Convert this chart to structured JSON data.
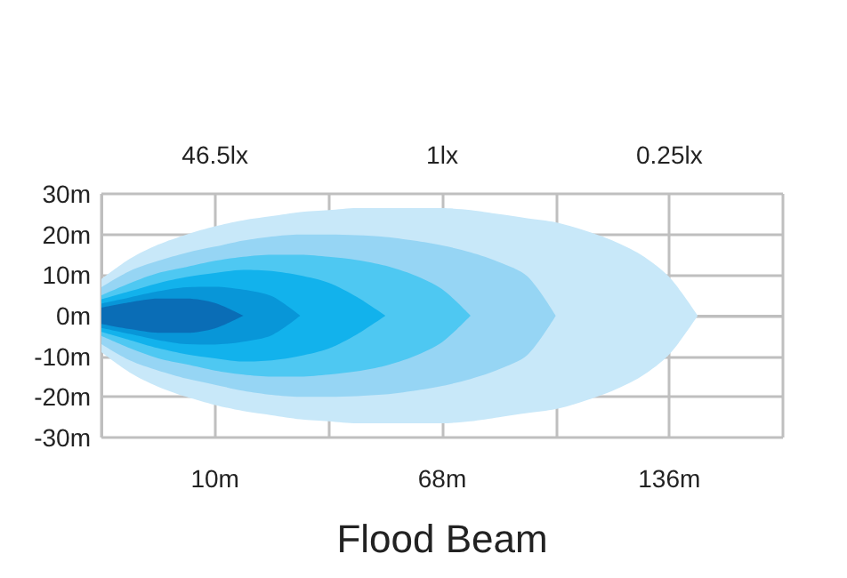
{
  "chart_data": {
    "type": "area",
    "xlabel": "Flood Beam",
    "categories": [
      null,
      null,
      null,
      null,
      "10m",
      null,
      null,
      null,
      null,
      null,
      null,
      null,
      "68m",
      null,
      null,
      null,
      null,
      null,
      null,
      null,
      "136m",
      null,
      null,
      null,
      null
    ],
    "series": [
      {
        "color": "#c8e8f9",
        "values": [
          9,
          14,
          17.5,
          20,
          22,
          23.5,
          24.5,
          25.5,
          26,
          26.5,
          26.5,
          26.5,
          26.5,
          26,
          25,
          24,
          23,
          21,
          18.5,
          15,
          9.5,
          0,
          null,
          null,
          null
        ]
      },
      {
        "color": "#c8e8f9",
        "values": [
          -9,
          -14,
          -17.5,
          -20,
          -22,
          -23.5,
          -24.5,
          -25.5,
          -26,
          -26.5,
          -26.5,
          -26.5,
          -26.5,
          -26,
          -25,
          -24,
          -23,
          -21,
          -18.5,
          -15,
          -9.5,
          0,
          null,
          null,
          null
        ]
      },
      {
        "color": "#96d5f4",
        "values": [
          7,
          11,
          13.5,
          15.5,
          17,
          18.5,
          19.5,
          20,
          20,
          19.8,
          19.4,
          18.5,
          17.3,
          15.6,
          13.2,
          9.7,
          0,
          null,
          null,
          null,
          null,
          null,
          null,
          null,
          null
        ]
      },
      {
        "color": "#96d5f4",
        "values": [
          -7,
          -11,
          -13.5,
          -15.5,
          -17,
          -18.5,
          -19.5,
          -20,
          -20,
          -19.8,
          -19.4,
          -18.5,
          -17.3,
          -15.6,
          -13.2,
          -9.7,
          0,
          null,
          null,
          null,
          null,
          null,
          null,
          null,
          null
        ]
      },
      {
        "color": "#4ec8f2",
        "values": [
          5,
          8,
          10.5,
          12,
          13.5,
          14.5,
          15,
          15,
          14.5,
          13.7,
          12.3,
          10,
          6.5,
          0,
          null,
          null,
          null,
          null,
          null,
          null,
          null,
          null,
          null,
          null,
          null
        ]
      },
      {
        "color": "#4ec8f2",
        "values": [
          -5,
          -8,
          -10.5,
          -12,
          -13.5,
          -14.5,
          -15,
          -15,
          -14.5,
          -13.7,
          -12.3,
          -10,
          -6.5,
          0,
          null,
          null,
          null,
          null,
          null,
          null,
          null,
          null,
          null,
          null,
          null
        ]
      },
      {
        "color": "#12b2ec",
        "values": [
          4,
          6,
          8,
          9.5,
          10.5,
          11.3,
          11,
          9.9,
          8.1,
          4.6,
          0,
          null,
          null,
          null,
          null,
          null,
          null,
          null,
          null,
          null,
          null,
          null,
          null,
          null,
          null
        ]
      },
      {
        "color": "#12b2ec",
        "values": [
          -4,
          -6,
          -8,
          -9.5,
          -10.5,
          -11.3,
          -11,
          -9.9,
          -8.1,
          -4.6,
          0,
          null,
          null,
          null,
          null,
          null,
          null,
          null,
          null,
          null,
          null,
          null,
          null,
          null,
          null
        ]
      },
      {
        "color": "#0896d8",
        "values": [
          3,
          4.5,
          6,
          7,
          7.1,
          6.4,
          4.8,
          0,
          null,
          null,
          null,
          null,
          null,
          null,
          null,
          null,
          null,
          null,
          null,
          null,
          null,
          null,
          null,
          null,
          null
        ]
      },
      {
        "color": "#0896d8",
        "values": [
          -3,
          -4.5,
          -6,
          -7,
          -7.1,
          -6.4,
          -4.8,
          0,
          null,
          null,
          null,
          null,
          null,
          null,
          null,
          null,
          null,
          null,
          null,
          null,
          null,
          null,
          null,
          null,
          null
        ]
      },
      {
        "color": "#0a6db6",
        "values": [
          2,
          3.3,
          4.2,
          4.2,
          3.1,
          0,
          null,
          null,
          null,
          null,
          null,
          null,
          null,
          null,
          null,
          null,
          null,
          null,
          null,
          null,
          null,
          null,
          null,
          null,
          null
        ]
      },
      {
        "color": "#0a6db6",
        "values": [
          -2,
          -3.3,
          -4.2,
          -4.2,
          -3.1,
          0,
          null,
          null,
          null,
          null,
          null,
          null,
          null,
          null,
          null,
          null,
          null,
          null,
          null,
          null,
          null,
          null,
          null,
          null,
          null
        ]
      }
    ],
    "ylim": [
      -30,
      30
    ],
    "yticks": [
      {
        "value": 30,
        "label": "30m"
      },
      {
        "value": 20,
        "label": "20m"
      },
      {
        "value": 10,
        "label": "10m"
      },
      {
        "value": 0,
        "label": "0m"
      },
      {
        "value": -10,
        "label": "-10m"
      },
      {
        "value": -20,
        "label": "-20m"
      },
      {
        "value": -30,
        "label": "-30m"
      }
    ],
    "grid": true,
    "annotations": [
      "46.5lx",
      "1lx",
      "0.25lx"
    ]
  }
}
